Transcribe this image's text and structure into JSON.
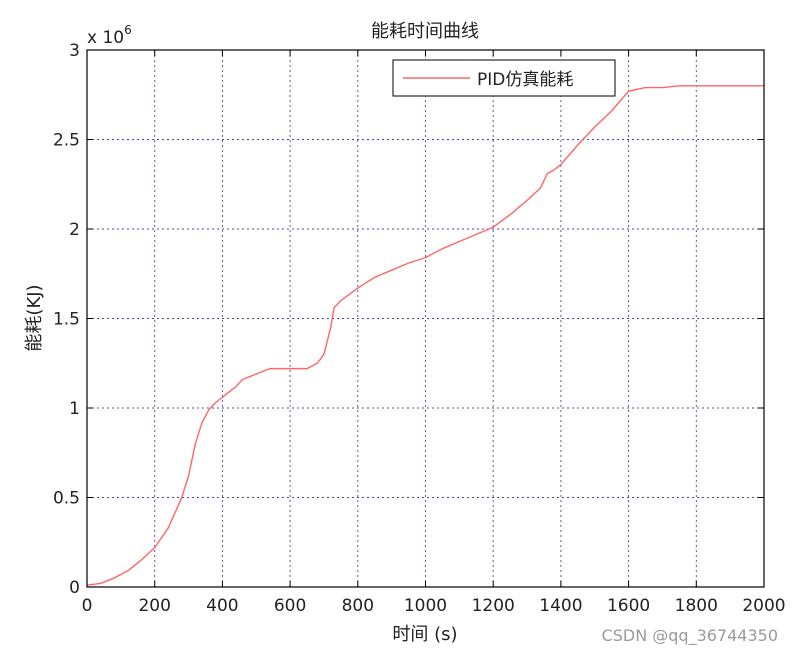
{
  "chart_data": {
    "type": "line",
    "title": "能耗时间曲线",
    "xlabel": "时间 (s)",
    "ylabel": "能耗(KJ)",
    "y_multiplier": "x 10",
    "y_exponent": "6",
    "xlim": [
      0,
      2000
    ],
    "ylim": [
      0,
      3
    ],
    "x_ticks": [
      0,
      200,
      400,
      600,
      800,
      1000,
      1200,
      1400,
      1600,
      1800,
      2000
    ],
    "y_ticks": [
      0,
      0.5,
      1,
      1.5,
      2,
      2.5,
      3
    ],
    "x_tick_labels": [
      "0",
      "200",
      "400",
      "600",
      "800",
      "1000",
      "1200",
      "1400",
      "1600",
      "1800",
      "2000"
    ],
    "y_tick_labels": [
      "0",
      "0.5",
      "1",
      "1.5",
      "2",
      "2.5",
      "3"
    ],
    "grid": true,
    "legend_position": "top-right",
    "series": [
      {
        "name": "PID仿真能耗",
        "color": "#ff6666",
        "x": [
          0,
          40,
          80,
          120,
          160,
          200,
          240,
          280,
          300,
          320,
          340,
          360,
          380,
          400,
          420,
          440,
          460,
          500,
          540,
          580,
          620,
          650,
          680,
          700,
          720,
          730,
          750,
          800,
          850,
          900,
          950,
          1000,
          1050,
          1100,
          1150,
          1200,
          1250,
          1300,
          1340,
          1360,
          1380,
          1400,
          1450,
          1500,
          1550,
          1600,
          1650,
          1700,
          1750,
          1800,
          1900,
          2000
        ],
        "y": [
          0.01,
          0.02,
          0.05,
          0.09,
          0.15,
          0.22,
          0.33,
          0.5,
          0.62,
          0.8,
          0.92,
          0.99,
          1.03,
          1.06,
          1.09,
          1.12,
          1.16,
          1.19,
          1.22,
          1.22,
          1.22,
          1.22,
          1.25,
          1.3,
          1.45,
          1.56,
          1.6,
          1.67,
          1.73,
          1.77,
          1.81,
          1.84,
          1.89,
          1.93,
          1.97,
          2.01,
          2.08,
          2.16,
          2.23,
          2.31,
          2.33,
          2.36,
          2.47,
          2.57,
          2.66,
          2.77,
          2.79,
          2.79,
          2.8,
          2.8,
          2.8,
          2.8
        ]
      }
    ]
  },
  "watermark": "CSDN @qq_36744350"
}
